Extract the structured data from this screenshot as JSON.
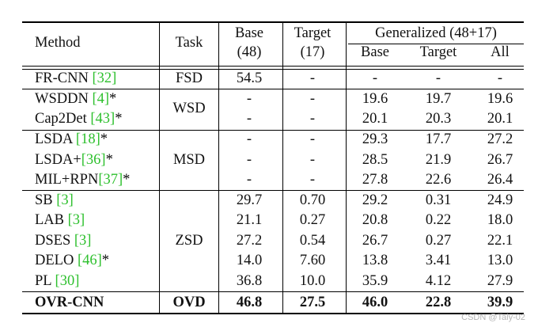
{
  "header": {
    "method": "Method",
    "task": "Task",
    "base_top": "Base",
    "base_bottom": "(48)",
    "target_top": "Target",
    "target_bottom": "(17)",
    "generalized": "Generalized (48+17)",
    "gen_base": "Base",
    "gen_target": "Target",
    "gen_all": "All"
  },
  "groups": [
    {
      "task": "FSD",
      "rows": [
        {
          "method": "FR-CNN",
          "ref": "[32]",
          "suffix": "",
          "base": "54.5",
          "target": "-",
          "gbase": "-",
          "gtarget": "-",
          "gall": "-"
        }
      ]
    },
    {
      "task": "WSD",
      "rows": [
        {
          "method": "WSDDN",
          "ref": "[4]",
          "suffix": "*",
          "base": "-",
          "target": "-",
          "gbase": "19.6",
          "gtarget": "19.7",
          "gall": "19.6"
        },
        {
          "method": "Cap2Det",
          "ref": "[43]",
          "suffix": "*",
          "base": "-",
          "target": "-",
          "gbase": "20.1",
          "gtarget": "20.3",
          "gall": "20.1"
        }
      ]
    },
    {
      "task": "MSD",
      "rows": [
        {
          "method": "LSDA",
          "ref": "[18]",
          "suffix": "*",
          "base": "-",
          "target": "-",
          "gbase": "29.3",
          "gtarget": "17.7",
          "gall": "27.2"
        },
        {
          "method": "LSDA+",
          "ref": "[36]",
          "suffix": "*",
          "base": "-",
          "target": "-",
          "gbase": "28.5",
          "gtarget": "21.9",
          "gall": "26.7"
        },
        {
          "method": "MIL+RPN",
          "ref": "[37]",
          "suffix": "*",
          "base": "-",
          "target": "-",
          "gbase": "27.8",
          "gtarget": "22.6",
          "gall": "26.4"
        }
      ]
    },
    {
      "task": "ZSD",
      "rows": [
        {
          "method": "SB",
          "ref": "[3]",
          "suffix": "",
          "base": "29.7",
          "target": "0.70",
          "gbase": "29.2",
          "gtarget": "0.31",
          "gall": "24.9"
        },
        {
          "method": "LAB",
          "ref": "[3]",
          "suffix": "",
          "base": "21.1",
          "target": "0.27",
          "gbase": "20.8",
          "gtarget": "0.22",
          "gall": "18.0"
        },
        {
          "method": "DSES",
          "ref": "[3]",
          "suffix": "",
          "base": "27.2",
          "target": "0.54",
          "gbase": "26.7",
          "gtarget": "0.27",
          "gall": "22.1"
        },
        {
          "method": "DELO",
          "ref": "[46]",
          "suffix": "*",
          "base": "14.0",
          "target": "7.60",
          "gbase": "13.8",
          "gtarget": "3.41",
          "gall": "13.0"
        },
        {
          "method": "PL",
          "ref": "[30]",
          "suffix": "",
          "base": "36.8",
          "target": "10.0",
          "gbase": "35.9",
          "gtarget": "4.12",
          "gall": "27.9"
        }
      ]
    },
    {
      "task": "OVD",
      "rows": [
        {
          "method": "OVR-CNN",
          "ref": "",
          "suffix": "",
          "base": "46.8",
          "target": "27.5",
          "gbase": "46.0",
          "gtarget": "22.8",
          "gall": "39.9"
        }
      ]
    }
  ],
  "watermark": "CSDN @Taly-02"
}
